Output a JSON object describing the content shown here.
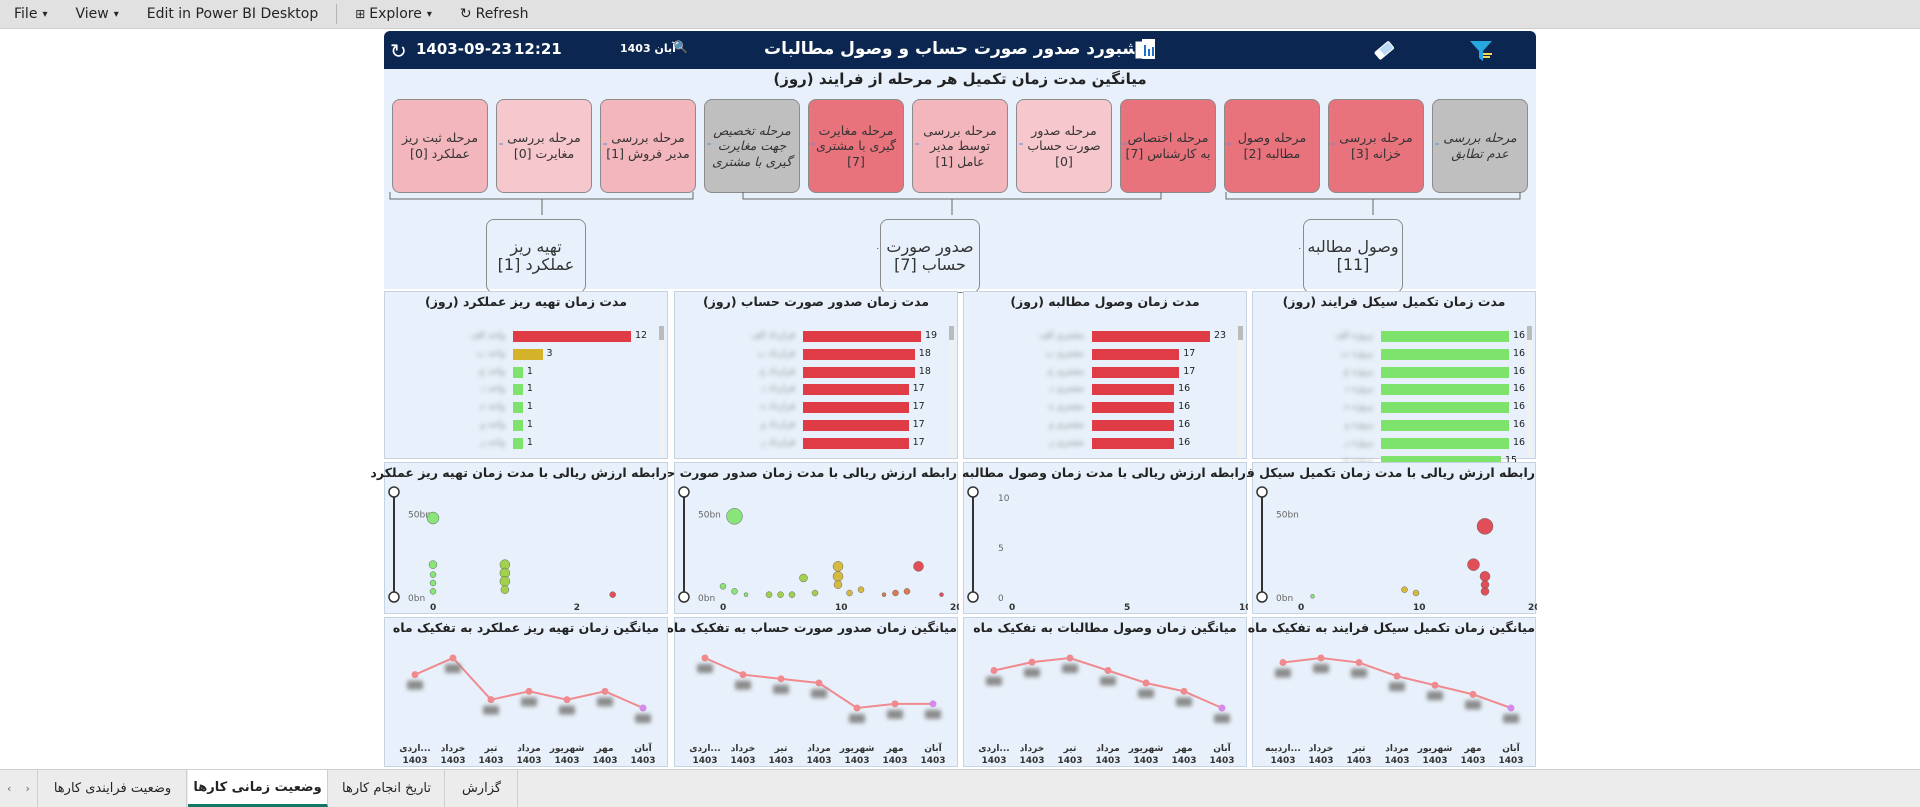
{
  "toolbar": {
    "file": "File",
    "view": "View",
    "edit": "Edit in Power BI Desktop",
    "explore": "Explore",
    "refresh": "Refresh"
  },
  "header": {
    "title": "داشبورد صدور صورت حساب و وصول مطالبات",
    "date": "1403-09-23",
    "time": "12:21",
    "month": "آبان 1403"
  },
  "process": {
    "title": "میانگین مدت زمان تکمیل هر مرحله از فرایند (روز)",
    "stages": [
      {
        "label": "مرحله بررسی عدم تطابق",
        "style": "gray"
      },
      {
        "label": "مرحله بررسی خزانه [3]",
        "style": "red"
      },
      {
        "label": "مرحله وصول مطالبه [2]",
        "style": "red"
      },
      {
        "label": "مرحله اختصاص به کارشناس [7]",
        "style": "red"
      },
      {
        "label": "مرحله صدور صورت حساب [0]",
        "style": "lightpink"
      },
      {
        "label": "مرحله بررسی توسط مدیر عامل [1]",
        "style": "pink"
      },
      {
        "label": "مرحله مغایرت گیری با مشتری [7]",
        "style": "red"
      },
      {
        "label": "مرحله تخصیص جهت مغایرت گیری با مشتری",
        "style": "gray"
      },
      {
        "label": "مرحله بررسی مدیر فروش [1]",
        "style": "pink"
      },
      {
        "label": "مرحله بررسی مغایرت [0]",
        "style": "lightpink"
      },
      {
        "label": "مرحله ثبت ریز عملکرد [0]",
        "style": "pink"
      }
    ],
    "groups": [
      {
        "label": "وصول مطالبه [11]"
      },
      {
        "label": "صدور صورت حساب [7]"
      },
      {
        "label": "تهیه ریز عملکرد [1]"
      }
    ]
  },
  "bar_panels": [
    {
      "title": "مدت زمان تکمیل سیکل فرایند (روز)",
      "rows": [
        {
          "label": "پروژه الف",
          "value": 16,
          "color": "#7ee36a"
        },
        {
          "label": "پروژه ب",
          "value": 16,
          "color": "#7ee36a"
        },
        {
          "label": "پروژه ج",
          "value": 16,
          "color": "#7ee36a"
        },
        {
          "label": "پروژه د",
          "value": 16,
          "color": "#7ee36a"
        },
        {
          "label": "پروژه ه",
          "value": 16,
          "color": "#7ee36a"
        },
        {
          "label": "پروژه و",
          "value": 16,
          "color": "#7ee36a"
        },
        {
          "label": "پروژه ز",
          "value": 16,
          "color": "#7ee36a"
        },
        {
          "label": "پروژه ح",
          "value": 15,
          "color": "#7ee36a"
        }
      ]
    },
    {
      "title": "مدت زمان وصول مطالبه (روز)",
      "rows": [
        {
          "label": "مشتری الف",
          "value": 23,
          "color": "#e03c46"
        },
        {
          "label": "مشتری ب",
          "value": 17,
          "color": "#e03c46"
        },
        {
          "label": "مشتری ج",
          "value": 17,
          "color": "#e03c46"
        },
        {
          "label": "مشتری د",
          "value": 16,
          "color": "#e03c46"
        },
        {
          "label": "مشتری ه",
          "value": 16,
          "color": "#e03c46"
        },
        {
          "label": "مشتری و",
          "value": 16,
          "color": "#e03c46"
        },
        {
          "label": "مشتری ز",
          "value": 16,
          "color": "#e03c46"
        }
      ]
    },
    {
      "title": "مدت زمان صدور صورت حساب (روز)",
      "rows": [
        {
          "label": "قرارداد الف",
          "value": 19,
          "color": "#e03c46"
        },
        {
          "label": "قرارداد ب",
          "value": 18,
          "color": "#e03c46"
        },
        {
          "label": "قرارداد ج",
          "value": 18,
          "color": "#e03c46"
        },
        {
          "label": "قرارداد د",
          "value": 17,
          "color": "#e03c46"
        },
        {
          "label": "قرارداد ه",
          "value": 17,
          "color": "#e03c46"
        },
        {
          "label": "قرارداد و",
          "value": 17,
          "color": "#e03c46"
        },
        {
          "label": "قرارداد ز",
          "value": 17,
          "color": "#e03c46"
        }
      ]
    },
    {
      "title": "مدت زمان تهیه ریز عملکرد (روز)",
      "rows": [
        {
          "label": "واحد الف",
          "value": 12,
          "color": "#e03c46"
        },
        {
          "label": "واحد ب",
          "value": 3,
          "color": "#d4b22a"
        },
        {
          "label": "واحد ج",
          "value": 1,
          "color": "#7ee36a"
        },
        {
          "label": "واحد د",
          "value": 1,
          "color": "#7ee36a"
        },
        {
          "label": "واحد ه",
          "value": 1,
          "color": "#7ee36a"
        },
        {
          "label": "واحد و",
          "value": 1,
          "color": "#7ee36a"
        },
        {
          "label": "واحد ز",
          "value": 1,
          "color": "#7ee36a"
        }
      ]
    }
  ],
  "scatter_panels": [
    {
      "title": "رابطه ارزش ریالی با مدت زمان تکمیل سیکل فرایند",
      "xticks": [
        "0",
        "10",
        "20"
      ],
      "xmax": 20,
      "yticks": [
        "0bn",
        "50bn"
      ],
      "ymax": 60,
      "points": [
        [
          16,
          43,
          8,
          "#e03c46"
        ],
        [
          15,
          20,
          6,
          "#e03c46"
        ],
        [
          16,
          13,
          5,
          "#e03c46"
        ],
        [
          16,
          8,
          4,
          "#e03c46"
        ],
        [
          16,
          4,
          4,
          "#e03c46"
        ],
        [
          9,
          5,
          3,
          "#d4b22a"
        ],
        [
          10,
          3,
          3,
          "#d4b22a"
        ],
        [
          1,
          1,
          2,
          "#7ee36a"
        ]
      ]
    },
    {
      "title": "رابطه ارزش ریالی با مدت زمان وصول مطالبه",
      "xticks": [
        "0",
        "5",
        "10"
      ],
      "xmax": 10,
      "yticks": [
        "0",
        "5",
        "10"
      ],
      "ymax": 10,
      "points": []
    },
    {
      "title": "رابطه ارزش ریالی با مدت زمان صدور صورت حساب",
      "xticks": [
        "0",
        "10",
        "20"
      ],
      "xmax": 20,
      "yticks": [
        "0bn",
        "50bn"
      ],
      "ymax": 60,
      "points": [
        [
          1,
          49,
          8,
          "#7ee36a"
        ],
        [
          0,
          7,
          3,
          "#7ee36a"
        ],
        [
          1,
          4,
          3,
          "#7ee36a"
        ],
        [
          2,
          2,
          2,
          "#7ee36a"
        ],
        [
          4,
          2,
          3,
          "#9acd3a"
        ],
        [
          5,
          2,
          3,
          "#9acd3a"
        ],
        [
          6,
          2,
          3,
          "#9acd3a"
        ],
        [
          7,
          12,
          4,
          "#9acd3a"
        ],
        [
          8,
          3,
          3,
          "#9acd3a"
        ],
        [
          10,
          19,
          5,
          "#d4b22a"
        ],
        [
          10,
          13,
          5,
          "#d4b22a"
        ],
        [
          10,
          8,
          4,
          "#d4b22a"
        ],
        [
          11,
          3,
          3,
          "#d4b22a"
        ],
        [
          12,
          5,
          3,
          "#d4b22a"
        ],
        [
          14,
          2,
          2,
          "#e06a3a"
        ],
        [
          15,
          3,
          3,
          "#e06a3a"
        ],
        [
          16,
          4,
          3,
          "#e06a3a"
        ],
        [
          17,
          19,
          5,
          "#e03c46"
        ],
        [
          19,
          2,
          2,
          "#e03c46"
        ]
      ]
    },
    {
      "title": "رابطه ارزش ریالی با مدت زمان تهیه ریز عملکرد",
      "xticks": [
        "0",
        "2"
      ],
      "xmax": 3.2,
      "yticks": [
        "0bn",
        "50bn"
      ],
      "ymax": 60,
      "points": [
        [
          0,
          48,
          6,
          "#7ee36a"
        ],
        [
          0,
          20,
          4,
          "#7ee36a"
        ],
        [
          0,
          14,
          3,
          "#7ee36a"
        ],
        [
          0,
          9,
          3,
          "#7ee36a"
        ],
        [
          0,
          4,
          3,
          "#7ee36a"
        ],
        [
          1,
          20,
          5,
          "#9acd3a"
        ],
        [
          1,
          15,
          5,
          "#9acd3a"
        ],
        [
          1,
          10,
          5,
          "#9acd3a"
        ],
        [
          1,
          5,
          4,
          "#9acd3a"
        ],
        [
          2.5,
          2,
          3,
          "#e03c46"
        ]
      ]
    }
  ],
  "line_panels": [
    {
      "title": "میانگین زمان تکمیل سیکل فرایند به تفکیک ماه",
      "months": [
        [
          "آبان",
          "1403"
        ],
        [
          "مهر",
          "1403"
        ],
        [
          "شهریور",
          "1403"
        ],
        [
          "مرداد",
          "1403"
        ],
        [
          "تیر",
          "1403"
        ],
        [
          "خرداد",
          "1403"
        ],
        [
          "...اردیبه",
          "1403"
        ]
      ],
      "values": [
        14,
        17,
        19,
        21,
        24,
        25,
        24
      ]
    },
    {
      "title": "میانگین زمان وصول مطالبات به تفکیک ماه",
      "months": [
        [
          "آبان",
          "1403"
        ],
        [
          "مهر",
          "1403"
        ],
        [
          "شهریور",
          "1403"
        ],
        [
          "مرداد",
          "1403"
        ],
        [
          "تیر",
          "1403"
        ],
        [
          "خرداد",
          "1403"
        ],
        [
          "...اردی",
          "1403"
        ]
      ],
      "values": [
        14,
        18,
        20,
        23,
        26,
        25,
        23
      ]
    },
    {
      "title": "میانگین زمان صدور صورت حساب به تفکیک ماه",
      "months": [
        [
          "آبان",
          "1403"
        ],
        [
          "مهر",
          "1403"
        ],
        [
          "شهریور",
          "1403"
        ],
        [
          "مرداد",
          "1403"
        ],
        [
          "تیر",
          "1403"
        ],
        [
          "خرداد",
          "1403"
        ],
        [
          "...اردی",
          "1403"
        ]
      ],
      "values": [
        15,
        15,
        14,
        20,
        21,
        22,
        26
      ]
    },
    {
      "title": "میانگین زمان تهیه ریز عملکرد به تفکیک ماه",
      "months": [
        [
          "آبان",
          "1403"
        ],
        [
          "مهر",
          "1403"
        ],
        [
          "شهریور",
          "1403"
        ],
        [
          "مرداد",
          "1403"
        ],
        [
          "تیر",
          "1403"
        ],
        [
          "خرداد",
          "1403"
        ],
        [
          "...اردی",
          "1403"
        ]
      ],
      "values": [
        3,
        5,
        4,
        5,
        4,
        9,
        7
      ]
    }
  ],
  "tabs": [
    {
      "label": "وضعیت فرایندی کارها"
    },
    {
      "label": "وضعیت زمانی کارها"
    },
    {
      "label": "تاریخ انجام کارها"
    },
    {
      "label": "گزارش"
    }
  ],
  "colors": {
    "header": "#0b2650",
    "accent": "#117865"
  }
}
